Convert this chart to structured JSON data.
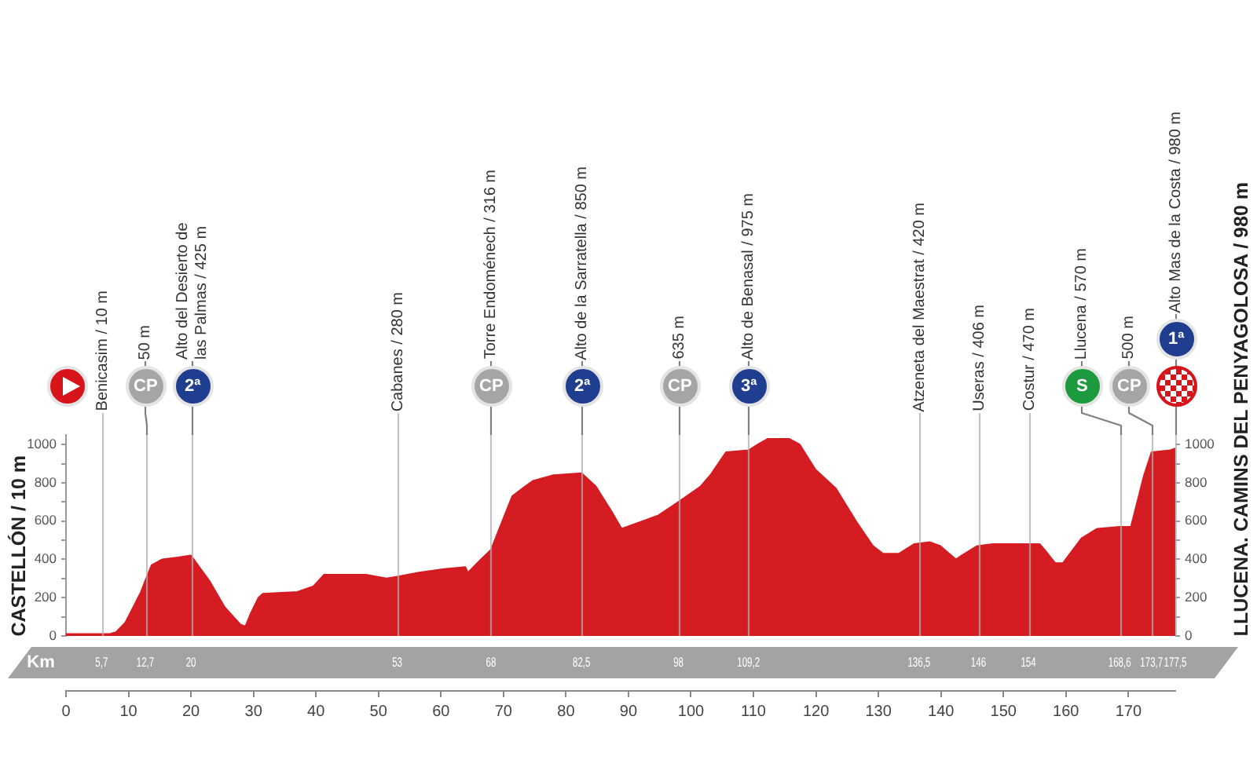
{
  "chart_data": {
    "type": "area",
    "ylabel": "CASTELLÓN / 10 m",
    "y2label": "LLUCENA. CAMINS DEL PENYAGOLOSA / 980 m",
    "x2label": "Km",
    "x": [
      0,
      7,
      8,
      9.5,
      12,
      12.7,
      13.7,
      15.4,
      17.9,
      20,
      22.9,
      25.4,
      27.9,
      28.7,
      29.6,
      30.8,
      31.5,
      37,
      39.6,
      41.3,
      44.6,
      48,
      51.3,
      53,
      56.3,
      60.5,
      63.9,
      64.3,
      66.4,
      68,
      69.7,
      71.4,
      73,
      74.7,
      78,
      82.5,
      84.8,
      87.3,
      88.9,
      92.3,
      94.8,
      98,
      101.5,
      103.1,
      105.6,
      109.2,
      110.7,
      112.3,
      115.7,
      117.4,
      119.9,
      123.2,
      126.6,
      129.1,
      130.7,
      133.3,
      135.7,
      138.2,
      139.9,
      142.4,
      143.3,
      145.8,
      148.3,
      155.8,
      156.6,
      158.3,
      159.5,
      162.5,
      165,
      168.6,
      170.4,
      172.5,
      173.7,
      176.7,
      177.5
    ],
    "values": [
      10,
      10,
      20,
      70,
      230,
      290,
      370,
      400,
      410,
      420,
      290,
      150,
      60,
      50,
      120,
      200,
      220,
      230,
      260,
      320,
      320,
      320,
      300,
      310,
      330,
      350,
      360,
      330,
      400,
      450,
      590,
      730,
      770,
      810,
      840,
      850,
      780,
      650,
      560,
      600,
      630,
      700,
      780,
      840,
      960,
      970,
      1000,
      1030,
      1030,
      1000,
      870,
      770,
      590,
      470,
      430,
      430,
      480,
      490,
      470,
      400,
      420,
      470,
      480,
      480,
      450,
      380,
      380,
      510,
      560,
      570,
      570,
      840,
      960,
      970,
      980
    ],
    "color": "#d41c22",
    "marker": "none",
    "xlim": [
      0,
      177.5
    ],
    "xticks": [
      0,
      10,
      20,
      30,
      40,
      50,
      60,
      70,
      80,
      90,
      100,
      110,
      120,
      130,
      140,
      150,
      160,
      170
    ],
    "x2lim": [
      0,
      177.5
    ],
    "x2ticks": [
      {
        "value": 5.7,
        "label": "5,7"
      },
      {
        "value": 12.7,
        "label": "12,7"
      },
      20,
      53,
      68,
      {
        "value": 82.5,
        "label": "82,5"
      },
      98,
      {
        "value": 109.2,
        "label": "109,2"
      },
      {
        "value": 136.5,
        "label": "136,5"
      },
      146,
      154,
      {
        "value": 168.6,
        "label": "168,6"
      },
      {
        "value": 173.7,
        "label": "173,7"
      },
      {
        "value": 177.5,
        "label": "177,5"
      }
    ],
    "ylim": [
      0,
      1050
    ],
    "yticks": [
      0,
      {
        "value": 100,
        "label": null
      },
      200,
      {
        "value": 300,
        "label": null
      },
      400,
      {
        "value": 500,
        "label": null
      },
      600,
      {
        "value": 700,
        "label": null
      },
      800,
      {
        "value": 900,
        "label": null
      },
      1000
    ],
    "y2lim": [
      0,
      1050
    ],
    "y2ticks": [
      0,
      {
        "value": 100,
        "label": null
      },
      200,
      {
        "value": 300,
        "label": null
      },
      400,
      {
        "value": 500,
        "label": null
      },
      600,
      {
        "value": 700,
        "label": null
      },
      800,
      {
        "value": 900,
        "label": null
      },
      1000
    ],
    "ref_lines": [
      {
        "axis": "x",
        "value": 5.7,
        "label": "Benicasim / 10 m"
      },
      {
        "axis": "x",
        "value": 53,
        "label": "Cabanes / 280 m"
      },
      {
        "axis": "x",
        "value": 136.5,
        "label": "Atzeneta del Maestrat / 420 m"
      },
      {
        "axis": "x",
        "value": 146,
        "label": "Useras / 406 m"
      },
      {
        "axis": "x",
        "value": 154,
        "label": "Costur / 470 m"
      },
      {
        "axis": "x",
        "value": 12.7,
        "label": "50 m"
      },
      {
        "axis": "x",
        "value": 20,
        "label": "Alto del Desierto de las Palmas / 425 m"
      },
      {
        "axis": "x",
        "value": 68,
        "label": "Torre Endoménech / 316 m"
      },
      {
        "axis": "x",
        "value": 82.5,
        "label": "Alto de la Sarratella / 850 m"
      },
      {
        "axis": "x",
        "value": 98,
        "label": "635 m"
      },
      {
        "axis": "x",
        "value": 109.2,
        "label": "Alto de Benasal / 975 m"
      },
      {
        "axis": "x",
        "value": 168.6,
        "label": "Llucena / 570 m"
      },
      {
        "axis": "x",
        "value": 173.7,
        "label": "500 m"
      },
      {
        "axis": "x",
        "value": 177.5,
        "label": "Alto Mas de la Costa / 980 m"
      }
    ],
    "annotations": [
      "CP",
      "2ª",
      "CP",
      "2ª",
      "CP",
      "3ª",
      "S",
      "CP",
      "1ª"
    ]
  }
}
